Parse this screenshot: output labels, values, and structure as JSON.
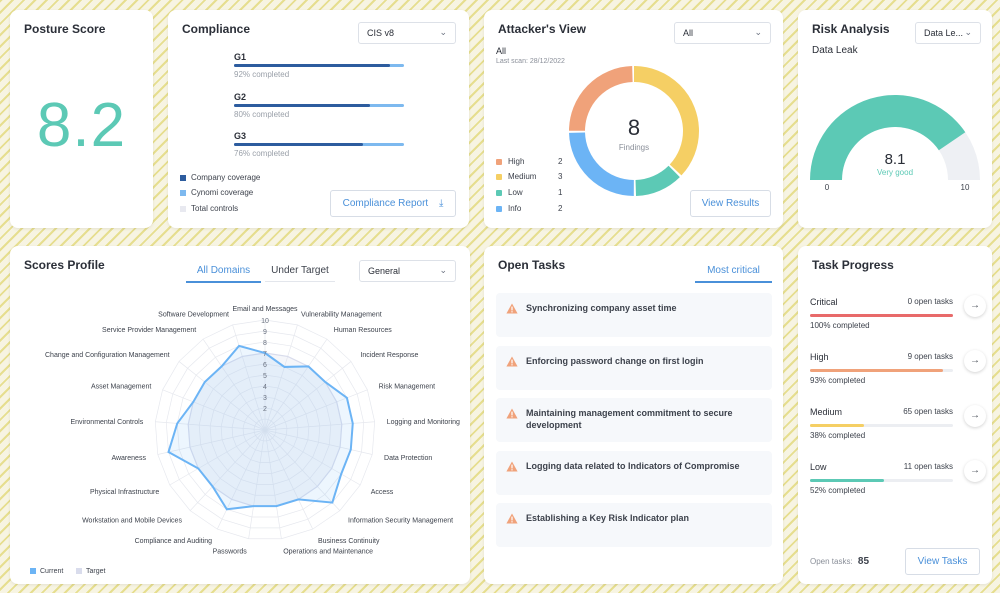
{
  "posture": {
    "title": "Posture Score",
    "score": "8.2",
    "score_color": "#5cc9b5"
  },
  "compliance": {
    "title": "Compliance",
    "framework_select": "CIS v8",
    "items": [
      {
        "label": "G1",
        "pct_text": "92% completed",
        "company": 0.92
      },
      {
        "label": "G2",
        "pct_text": "80% completed",
        "company": 0.8
      },
      {
        "label": "G3",
        "pct_text": "76% completed",
        "company": 0.76
      }
    ],
    "legend": [
      "Company coverage",
      "Cynomi coverage",
      "Total controls"
    ],
    "legend_colors": [
      "#2d5c9e",
      "#7db9ef",
      "#e8e9f0"
    ],
    "report_button": "Compliance Report"
  },
  "attacker": {
    "title": "Attacker's View",
    "filter_select": "All",
    "filter_label": "All",
    "last_scan": "Last scan: 28/12/2022",
    "findings_count": "8",
    "findings_label": "Findings",
    "legend": [
      {
        "label": "High",
        "value": 2,
        "color": "#f0a27a"
      },
      {
        "label": "Medium",
        "value": 3,
        "color": "#f5cf64"
      },
      {
        "label": "Low",
        "value": 1,
        "color": "#5cc9b5"
      },
      {
        "label": "Info",
        "value": 2,
        "color": "#6cb4f5"
      }
    ],
    "results_button": "View Results"
  },
  "risk": {
    "title": "Risk Analysis",
    "select": "Data Le...",
    "subtitle": "Data Leak",
    "value": "8.1",
    "value_num": 8.1,
    "rating": "Very good",
    "min": "0",
    "max": "10",
    "gauge_color": "#5cc9b5"
  },
  "scores_profile": {
    "title": "Scores Profile",
    "tabs": [
      "All Domains",
      "Under Target"
    ],
    "select": "General",
    "legend_current": "Current",
    "legend_target": "Target"
  },
  "chart_data": {
    "type": "radar",
    "range": [
      0,
      10
    ],
    "tick_labels": [
      "2",
      "3",
      "4",
      "5",
      "6",
      "7",
      "8",
      "9",
      "10"
    ],
    "categories": [
      "Email and Messages",
      "Vulnerability Management",
      "Human Resources",
      "Incident Response",
      "Risk Management",
      "Logging and Monitoring",
      "Data Protection",
      "Access",
      "Information Security Management",
      "Business Continuity",
      "Operations and Maintenance",
      "Passwords",
      "Compliance and Auditing",
      "Workstation and Mobile Devices",
      "Physical Infrastructure",
      "Awareness",
      "Environmental Controls",
      "Asset Management",
      "Change and Configuration Management",
      "Service Provider Management",
      "Software Development"
    ],
    "series": [
      {
        "name": "Current",
        "color": "#6cb4f5",
        "values": [
          7,
          6,
          7,
          7,
          8,
          8,
          8,
          8,
          9,
          7,
          7,
          7,
          8,
          7,
          7,
          9,
          8,
          7,
          7,
          7,
          8
        ]
      },
      {
        "name": "Target",
        "color": "#d9dcec",
        "values": [
          7,
          7,
          7,
          7,
          7,
          7,
          7,
          7,
          7,
          7,
          7,
          7,
          7,
          7,
          7,
          7,
          7,
          7,
          7,
          7,
          7
        ]
      }
    ]
  },
  "open_tasks": {
    "title": "Open Tasks",
    "tab": "Most critical",
    "items": [
      "Synchronizing company asset time",
      "Enforcing password change on first login",
      "Maintaining management commitment to secure development",
      "Logging data related to Indicators of Compromise",
      "Establishing a Key Risk Indicator plan"
    ]
  },
  "task_progress": {
    "title": "Task Progress",
    "rows": [
      {
        "name": "Critical",
        "count": "0 open tasks",
        "pct_text": "100% completed",
        "pct": 1.0,
        "color": "#e86a6a"
      },
      {
        "name": "High",
        "count": "9 open tasks",
        "pct_text": "93% completed",
        "pct": 0.93,
        "color": "#f0a27a"
      },
      {
        "name": "Medium",
        "count": "65 open tasks",
        "pct_text": "38% completed",
        "pct": 0.38,
        "color": "#f5cf64"
      },
      {
        "name": "Low",
        "count": "11 open tasks",
        "pct_text": "52% completed",
        "pct": 0.52,
        "color": "#5cc9b5"
      }
    ],
    "open_label": "Open tasks:",
    "open_count": "85",
    "view_button": "View Tasks"
  }
}
